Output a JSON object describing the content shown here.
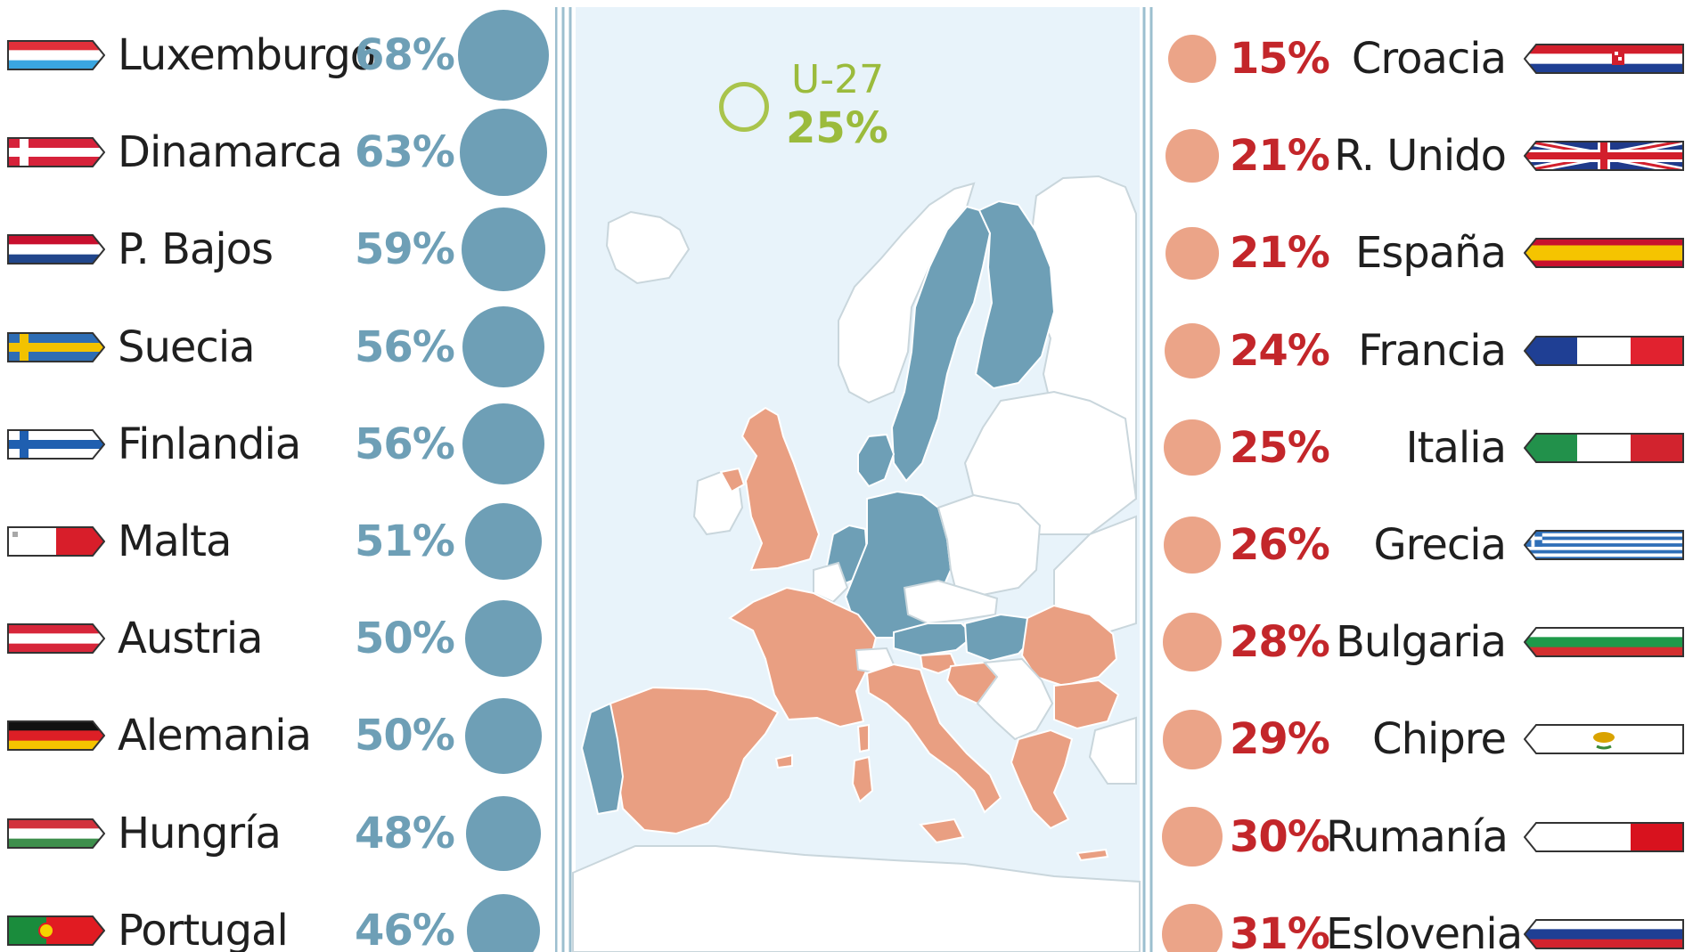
{
  "colors": {
    "high_bubble": "#6e9fb6",
    "high_text": "#6e9fb6",
    "low_bubble": "#eba488",
    "low_text": "#c3262a",
    "eu_avg": "#9bbb3c",
    "map_sea": "#e8f3fa",
    "map_high": "#6e9fb6",
    "map_low": "#e99f82",
    "map_other": "#ffffff"
  },
  "eu_average": {
    "label": "U-27",
    "value_label": "25%",
    "value": 25
  },
  "left_column": [
    {
      "country": "Luxemburgo",
      "value_label": "68%",
      "flag": "luxembourg-flag-icon"
    },
    {
      "country": "Dinamarca",
      "value_label": "63%",
      "flag": "denmark-flag-icon"
    },
    {
      "country": "P. Bajos",
      "value_label": "59%",
      "flag": "netherlands-flag-icon"
    },
    {
      "country": "Suecia",
      "value_label": "56%",
      "flag": "sweden-flag-icon"
    },
    {
      "country": "Finlandia",
      "value_label": "56%",
      "flag": "finland-flag-icon"
    },
    {
      "country": "Malta",
      "value_label": "51%",
      "flag": "malta-flag-icon"
    },
    {
      "country": "Austria",
      "value_label": "50%",
      "flag": "austria-flag-icon"
    },
    {
      "country": "Alemania",
      "value_label": "50%",
      "flag": "germany-flag-icon"
    },
    {
      "country": "Hungría",
      "value_label": "48%",
      "flag": "hungary-flag-icon"
    },
    {
      "country": "Portugal",
      "value_label": "46%",
      "flag": "portugal-flag-icon"
    }
  ],
  "right_column": [
    {
      "country": "Croacia",
      "value_label": "15%",
      "flag": "croatia-flag-icon"
    },
    {
      "country": "R. Unido",
      "value_label": "21%",
      "flag": "uk-flag-icon"
    },
    {
      "country": "España",
      "value_label": "21%",
      "flag": "spain-flag-icon"
    },
    {
      "country": "Francia",
      "value_label": "24%",
      "flag": "france-flag-icon"
    },
    {
      "country": "Italia",
      "value_label": "25%",
      "flag": "italy-flag-icon"
    },
    {
      "country": "Grecia",
      "value_label": "26%",
      "flag": "greece-flag-icon"
    },
    {
      "country": "Bulgaria",
      "value_label": "28%",
      "flag": "bulgaria-flag-icon"
    },
    {
      "country": "Chipre",
      "value_label": "29%",
      "flag": "cyprus-flag-icon"
    },
    {
      "country": "Rumanía",
      "value_label": "30%",
      "flag": "romania-flag-icon"
    },
    {
      "country": "Eslovenia",
      "value_label": "31%",
      "flag": "slovenia-flag-icon"
    }
  ],
  "chart_data": {
    "type": "bubble-map",
    "title": "",
    "reference": {
      "name": "U-27",
      "value": 25
    },
    "series": [
      {
        "categories": [
          "Luxemburgo",
          "Dinamarca",
          "P. Bajos",
          "Suecia",
          "Finlandia",
          "Malta",
          "Austria",
          "Alemania",
          "Hungría",
          "Portugal"
        ],
        "values": [
          68,
          63,
          59,
          56,
          56,
          51,
          50,
          50,
          48,
          46
        ],
        "color": "#6e9fb6"
      },
      {
        "categories": [
          "Croacia",
          "R. Unido",
          "España",
          "Francia",
          "Italia",
          "Grecia",
          "Bulgaria",
          "Chipre",
          "Rumanía",
          "Eslovenia"
        ],
        "values": [
          15,
          21,
          21,
          24,
          25,
          26,
          28,
          29,
          30,
          31
        ],
        "color": "#eba488"
      }
    ]
  }
}
